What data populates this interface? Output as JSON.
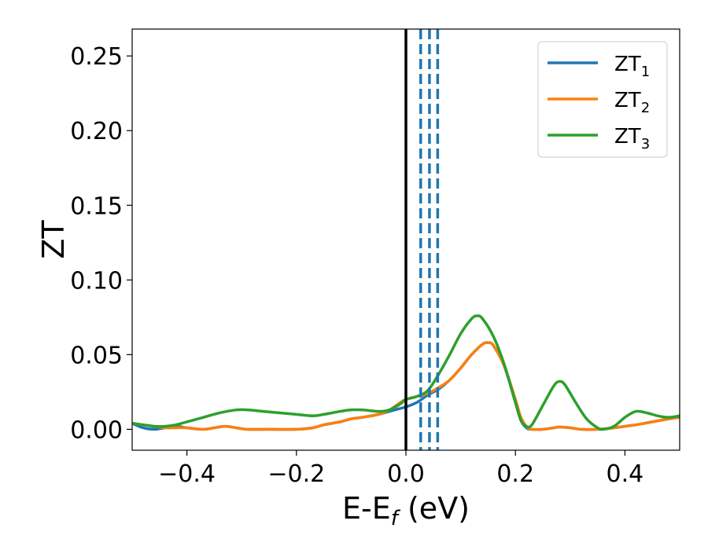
{
  "chart_data": {
    "type": "line",
    "xlabel": "E-E_f (eV)",
    "ylabel": "ZT",
    "xlim": [
      -0.5,
      0.5
    ],
    "ylim": [
      -0.014,
      0.268
    ],
    "xticks": [
      {
        "value": -0.4,
        "label": "−0.4"
      },
      {
        "value": -0.2,
        "label": "−0.2"
      },
      {
        "value": 0.0,
        "label": "0.0"
      },
      {
        "value": 0.2,
        "label": "0.2"
      },
      {
        "value": 0.4,
        "label": "0.4"
      }
    ],
    "yticks": [
      {
        "value": 0.0,
        "label": "0.00"
      },
      {
        "value": 0.05,
        "label": "0.05"
      },
      {
        "value": 0.1,
        "label": "0.10"
      },
      {
        "value": 0.15,
        "label": "0.15"
      },
      {
        "value": 0.2,
        "label": "0.20"
      },
      {
        "value": 0.25,
        "label": "0.25"
      }
    ],
    "grid": false,
    "legend_position": "top-right",
    "series": [
      {
        "name": "ZT_1",
        "label_main": "ZT",
        "label_sub": "1",
        "color": "#1f77b4",
        "points": [
          [
            -0.5,
            0.004
          ],
          [
            -0.48,
            0.001
          ],
          [
            -0.46,
            0.0
          ],
          [
            -0.44,
            0.001
          ],
          [
            -0.42,
            0.002
          ],
          [
            -0.4,
            0.001
          ],
          [
            -0.37,
            0.0
          ],
          [
            -0.35,
            0.001
          ],
          [
            -0.33,
            0.002
          ],
          [
            -0.31,
            0.001
          ],
          [
            -0.29,
            0.0
          ],
          [
            -0.25,
            0.0
          ],
          [
            -0.2,
            0.0
          ],
          [
            -0.17,
            0.001
          ],
          [
            -0.15,
            0.003
          ],
          [
            -0.12,
            0.005
          ],
          [
            -0.1,
            0.007
          ],
          [
            -0.08,
            0.008
          ],
          [
            -0.05,
            0.01
          ],
          [
            -0.03,
            0.012
          ],
          [
            -0.01,
            0.014
          ],
          [
            0.0,
            0.015
          ],
          [
            0.02,
            0.018
          ],
          [
            0.04,
            0.023
          ],
          [
            0.06,
            0.027
          ],
          [
            0.08,
            0.033
          ],
          [
            0.1,
            0.041
          ],
          [
            0.12,
            0.05
          ],
          [
            0.14,
            0.057
          ],
          [
            0.15,
            0.058
          ],
          [
            0.16,
            0.056
          ],
          [
            0.18,
            0.042
          ],
          [
            0.2,
            0.018
          ],
          [
            0.21,
            0.006
          ],
          [
            0.22,
            0.001
          ],
          [
            0.23,
            0.0
          ],
          [
            0.25,
            0.0
          ],
          [
            0.27,
            0.001
          ],
          [
            0.28,
            0.0015
          ],
          [
            0.3,
            0.001
          ],
          [
            0.32,
            0.0
          ],
          [
            0.35,
            0.0
          ],
          [
            0.38,
            0.001
          ],
          [
            0.4,
            0.002
          ],
          [
            0.42,
            0.003
          ],
          [
            0.45,
            0.005
          ],
          [
            0.48,
            0.007
          ],
          [
            0.5,
            0.008
          ]
        ]
      },
      {
        "name": "ZT_2",
        "label_main": "ZT",
        "label_sub": "2",
        "color": "#ff7f0e",
        "points": [
          [
            -0.5,
            0.004
          ],
          [
            -0.48,
            0.003
          ],
          [
            -0.46,
            0.002
          ],
          [
            -0.44,
            0.001
          ],
          [
            -0.42,
            0.001
          ],
          [
            -0.4,
            0.001
          ],
          [
            -0.37,
            0.0
          ],
          [
            -0.35,
            0.001
          ],
          [
            -0.33,
            0.002
          ],
          [
            -0.31,
            0.001
          ],
          [
            -0.29,
            0.0
          ],
          [
            -0.25,
            0.0
          ],
          [
            -0.2,
            0.0
          ],
          [
            -0.17,
            0.001
          ],
          [
            -0.15,
            0.003
          ],
          [
            -0.12,
            0.005
          ],
          [
            -0.1,
            0.007
          ],
          [
            -0.08,
            0.008
          ],
          [
            -0.05,
            0.01
          ],
          [
            -0.03,
            0.013
          ],
          [
            -0.01,
            0.018
          ],
          [
            0.0,
            0.02
          ],
          [
            0.02,
            0.022
          ],
          [
            0.04,
            0.024
          ],
          [
            0.06,
            0.028
          ],
          [
            0.08,
            0.033
          ],
          [
            0.1,
            0.041
          ],
          [
            0.12,
            0.05
          ],
          [
            0.14,
            0.057
          ],
          [
            0.15,
            0.058
          ],
          [
            0.16,
            0.056
          ],
          [
            0.18,
            0.042
          ],
          [
            0.2,
            0.02
          ],
          [
            0.21,
            0.008
          ],
          [
            0.22,
            0.002
          ],
          [
            0.23,
            0.0
          ],
          [
            0.25,
            0.0
          ],
          [
            0.27,
            0.001
          ],
          [
            0.28,
            0.0015
          ],
          [
            0.3,
            0.001
          ],
          [
            0.32,
            0.0
          ],
          [
            0.35,
            0.0
          ],
          [
            0.38,
            0.001
          ],
          [
            0.4,
            0.002
          ],
          [
            0.42,
            0.003
          ],
          [
            0.45,
            0.005
          ],
          [
            0.48,
            0.007
          ],
          [
            0.5,
            0.008
          ]
        ]
      },
      {
        "name": "ZT_3",
        "label_main": "ZT",
        "label_sub": "3",
        "color": "#2ca02c",
        "points": [
          [
            -0.5,
            0.004
          ],
          [
            -0.48,
            0.003
          ],
          [
            -0.46,
            0.002
          ],
          [
            -0.44,
            0.002
          ],
          [
            -0.42,
            0.003
          ],
          [
            -0.4,
            0.005
          ],
          [
            -0.37,
            0.008
          ],
          [
            -0.34,
            0.011
          ],
          [
            -0.31,
            0.013
          ],
          [
            -0.29,
            0.013
          ],
          [
            -0.26,
            0.012
          ],
          [
            -0.23,
            0.011
          ],
          [
            -0.2,
            0.01
          ],
          [
            -0.17,
            0.009
          ],
          [
            -0.15,
            0.01
          ],
          [
            -0.12,
            0.012
          ],
          [
            -0.1,
            0.013
          ],
          [
            -0.08,
            0.013
          ],
          [
            -0.05,
            0.012
          ],
          [
            -0.03,
            0.013
          ],
          [
            -0.01,
            0.017
          ],
          [
            0.0,
            0.02
          ],
          [
            0.02,
            0.022
          ],
          [
            0.04,
            0.026
          ],
          [
            0.06,
            0.037
          ],
          [
            0.08,
            0.05
          ],
          [
            0.1,
            0.064
          ],
          [
            0.12,
            0.074
          ],
          [
            0.13,
            0.076
          ],
          [
            0.14,
            0.074
          ],
          [
            0.16,
            0.062
          ],
          [
            0.18,
            0.043
          ],
          [
            0.2,
            0.018
          ],
          [
            0.21,
            0.006
          ],
          [
            0.22,
            0.002
          ],
          [
            0.23,
            0.003
          ],
          [
            0.25,
            0.016
          ],
          [
            0.27,
            0.029
          ],
          [
            0.28,
            0.032
          ],
          [
            0.29,
            0.03
          ],
          [
            0.31,
            0.018
          ],
          [
            0.33,
            0.007
          ],
          [
            0.35,
            0.001
          ],
          [
            0.36,
            0.0
          ],
          [
            0.38,
            0.002
          ],
          [
            0.4,
            0.008
          ],
          [
            0.42,
            0.012
          ],
          [
            0.44,
            0.011
          ],
          [
            0.46,
            0.009
          ],
          [
            0.48,
            0.008
          ],
          [
            0.5,
            0.009
          ]
        ]
      }
    ],
    "vlines": [
      {
        "x": 0.0,
        "color": "#000000",
        "style": "solid"
      },
      {
        "x": 0.027,
        "color": "#1f77b4",
        "style": "dashed"
      },
      {
        "x": 0.043,
        "color": "#1f77b4",
        "style": "dashed"
      },
      {
        "x": 0.058,
        "color": "#1f77b4",
        "style": "dashed"
      }
    ]
  }
}
